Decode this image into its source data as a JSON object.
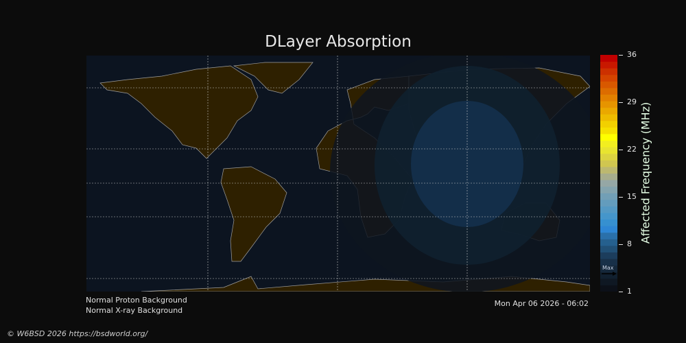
{
  "title": "DLayer Absorption",
  "colorbar": {
    "label": "Affected Frequency (MHz)",
    "ticks": [
      "36",
      "29",
      "22",
      "15",
      "8",
      "1"
    ],
    "range": [
      1,
      36
    ],
    "max_marker": "Max",
    "colors": [
      "#0c1018",
      "#0f1823",
      "#11202f",
      "#15283b",
      "#183048",
      "#1c3d5c",
      "#215076",
      "#25608e",
      "#2a70aa",
      "#2e86d4",
      "#3690d0",
      "#4596cb",
      "#5499c4",
      "#639cbd",
      "#729fb6",
      "#84a4ae",
      "#95a7a5",
      "#a7ad8d",
      "#bcb870",
      "#d0c650",
      "#dcd440",
      "#e8e430",
      "#f2ee20",
      "#ffff00",
      "#f6e000",
      "#f2d000",
      "#eebb00",
      "#eaa800",
      "#e69400",
      "#e28000",
      "#dc6c00",
      "#d85800",
      "#d44400",
      "#cc3000",
      "#c81800",
      "#c00000"
    ]
  },
  "status": {
    "proton": "Normal Proton Background",
    "xray": "Normal X-ray Background",
    "timestamp": "Mon Apr 06 2026 - 06:02"
  },
  "footer": {
    "copyright": "© W6BSD 2026 https://bsdworld.org/"
  },
  "map_colors": {
    "ocean": "#0c1420",
    "land": "#2e2000",
    "coast": "#a0a0a0",
    "zone_outer": "#0e1520",
    "zone_mid": "#10202f",
    "zone_inner": "#14304d"
  }
}
